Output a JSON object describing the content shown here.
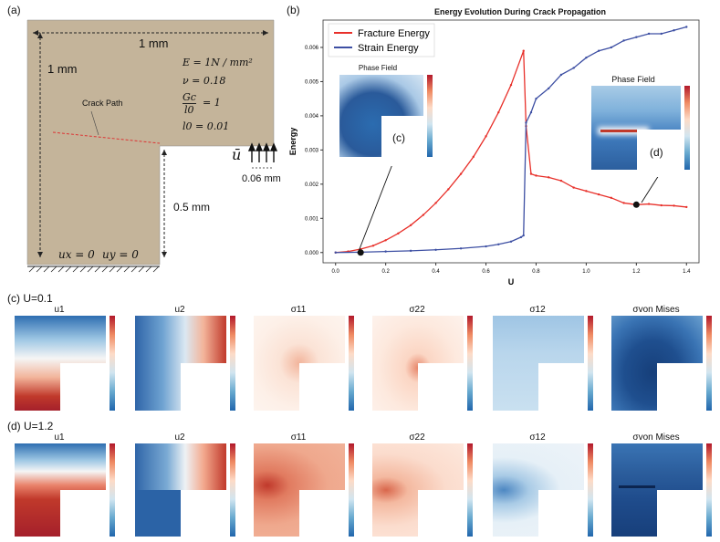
{
  "panel_a": {
    "label": "(a)",
    "width_label": "1 mm",
    "height_label": "1 mm",
    "eq_E": "E = 1N / mm²",
    "eq_nu": "ν = 0.18",
    "eq_Gc_num": "Gc",
    "eq_Gc_den": "l0",
    "eq_Gc_val": "= 1",
    "eq_l0": "l0 = 0.01",
    "crack_label": "Crack Path",
    "u_bar": "ū",
    "disp_width": "0.06 mm",
    "half_label": "0.5 mm",
    "bc_ux": "ux = 0",
    "bc_uy": "uy = 0",
    "colors": {
      "specimen": "#c4b49a"
    }
  },
  "panel_b": {
    "label": "(b)",
    "inset_c_title": "Phase Field",
    "inset_c_label": "(c)",
    "inset_d_title": "Phase Field",
    "inset_d_label": "(d)"
  },
  "chart_data": {
    "type": "line",
    "title": "Energy Evolution During Crack Propagation",
    "xlabel": "U",
    "ylabel": "Energy",
    "xlim": [
      -0.05,
      1.45
    ],
    "ylim": [
      -0.0003,
      0.0068
    ],
    "xticks": [
      "0.0",
      "0.2",
      "0.4",
      "0.6",
      "0.8",
      "1.0",
      "1.2",
      "1.4"
    ],
    "yticks": [
      "0.000",
      "0.001",
      "0.002",
      "0.003",
      "0.004",
      "0.005",
      "0.006"
    ],
    "legend_position": "top-left",
    "series": [
      {
        "name": "Fracture Energy",
        "color": "#e8302a",
        "x": [
          0.0,
          0.05,
          0.1,
          0.15,
          0.2,
          0.25,
          0.3,
          0.35,
          0.4,
          0.45,
          0.5,
          0.55,
          0.6,
          0.65,
          0.7,
          0.75,
          0.76,
          0.78,
          0.8,
          0.85,
          0.9,
          0.95,
          1.0,
          1.05,
          1.1,
          1.15,
          1.2,
          1.25,
          1.3,
          1.35,
          1.4
        ],
        "y": [
          0.0,
          3e-05,
          0.0001,
          0.0002,
          0.00036,
          0.00056,
          0.0008,
          0.0011,
          0.00145,
          0.00185,
          0.0023,
          0.0028,
          0.0034,
          0.0041,
          0.0049,
          0.0059,
          0.0037,
          0.0023,
          0.00225,
          0.0022,
          0.0021,
          0.0019,
          0.0018,
          0.0017,
          0.0016,
          0.00145,
          0.0014,
          0.00142,
          0.00138,
          0.00137,
          0.00133
        ]
      },
      {
        "name": "Strain Energy",
        "color": "#3d4fa3",
        "x": [
          0.0,
          0.1,
          0.2,
          0.3,
          0.4,
          0.5,
          0.6,
          0.65,
          0.7,
          0.74,
          0.75,
          0.76,
          0.78,
          0.8,
          0.85,
          0.9,
          0.95,
          1.0,
          1.05,
          1.1,
          1.15,
          1.2,
          1.25,
          1.3,
          1.35,
          1.4
        ],
        "y": [
          0.0,
          1e-05,
          3e-05,
          5e-05,
          8e-05,
          0.00012,
          0.00018,
          0.00024,
          0.00032,
          0.00045,
          0.0005,
          0.0038,
          0.0041,
          0.0045,
          0.0048,
          0.0052,
          0.0054,
          0.0057,
          0.0059,
          0.006,
          0.0062,
          0.0063,
          0.0064,
          0.0064,
          0.0065,
          0.0066
        ]
      }
    ],
    "markers": [
      {
        "x": 0.1,
        "y": 0.0
      },
      {
        "x": 1.2,
        "y": 0.0014
      }
    ]
  },
  "rows": [
    {
      "label": "(c)  U=0.1",
      "titles": [
        "u1",
        "u2",
        "σ11",
        "σ22",
        "σ12",
        "σvon Mises"
      ]
    },
    {
      "label": "(d)  U=1.2",
      "titles": [
        "u1",
        "u2",
        "σ11",
        "σ22",
        "σ12",
        "σvon Mises"
      ]
    }
  ]
}
